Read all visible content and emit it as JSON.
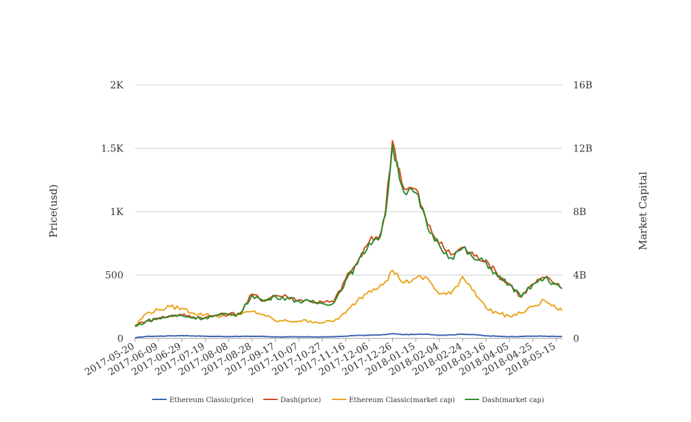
{
  "chart_data": {
    "type": "line",
    "title": "",
    "y_left_label": "Price(usd)",
    "y_right_label": "Market Capital",
    "y_left_ticks": [
      "0",
      "500",
      "1K",
      "1.5K",
      "2K"
    ],
    "y_right_ticks": [
      "0",
      "4B",
      "8B",
      "12B",
      "16B"
    ],
    "y_left_range": [
      0,
      2000
    ],
    "y_right_range": [
      0,
      16000000000
    ],
    "x_tick_labels": [
      "2017-05-20",
      "2017-06-09",
      "2017-06-29",
      "2017-07-19",
      "2017-08-08",
      "2017-08-28",
      "2017-09-17",
      "2017-10-07",
      "2017-10-27",
      "2017-11-16",
      "2017-12-06",
      "2017-12-26",
      "2018-01-15",
      "2018-02-04",
      "2018-02-24",
      "2018-03-16",
      "2018-04-05",
      "2018-04-25",
      "2018-05-15"
    ],
    "x_dates": [
      "2017-05-20",
      "2017-05-30",
      "2017-06-09",
      "2017-06-19",
      "2017-06-29",
      "2017-07-09",
      "2017-07-19",
      "2017-07-29",
      "2017-08-08",
      "2017-08-18",
      "2017-08-28",
      "2017-09-07",
      "2017-09-17",
      "2017-09-27",
      "2017-10-07",
      "2017-10-17",
      "2017-10-27",
      "2017-11-06",
      "2017-11-16",
      "2017-11-26",
      "2017-12-06",
      "2017-12-16",
      "2017-12-20",
      "2017-12-26",
      "2018-01-05",
      "2018-01-15",
      "2018-01-25",
      "2018-02-04",
      "2018-02-14",
      "2018-02-24",
      "2018-03-06",
      "2018-03-16",
      "2018-03-26",
      "2018-04-05",
      "2018-04-15",
      "2018-04-25",
      "2018-05-05",
      "2018-05-15",
      "2018-05-20"
    ],
    "series": [
      {
        "name": "Ethereum Classic(price)",
        "color": "#3a62b3",
        "axis": "left",
        "values": [
          5,
          16,
          18,
          20,
          22,
          20,
          17,
          16,
          15,
          16,
          17,
          16,
          12,
          12,
          12,
          12,
          12,
          13,
          18,
          24,
          25,
          28,
          30,
          38,
          30,
          32,
          34,
          25,
          28,
          34,
          30,
          20,
          17,
          14,
          16,
          18,
          18,
          15,
          14
        ]
      },
      {
        "name": "Dash(price)",
        "color": "#d04a1e",
        "axis": "left",
        "values": [
          100,
          140,
          160,
          180,
          185,
          170,
          165,
          185,
          190,
          200,
          350,
          300,
          340,
          330,
          305,
          295,
          285,
          290,
          470,
          600,
          760,
          830,
          1000,
          1560,
          1180,
          1180,
          900,
          750,
          660,
          720,
          650,
          620,
          500,
          430,
          330,
          430,
          480,
          430,
          395
        ]
      },
      {
        "name": "Ethereum Classic(market cap)",
        "color": "#eba31b",
        "axis": "right",
        "values": [
          800000000,
          1600000000,
          1800000000,
          2000000000,
          1900000000,
          1600000000,
          1500000000,
          1400000000,
          1500000000,
          1500000000,
          1700000000,
          1500000000,
          1100000000,
          1100000000,
          1100000000,
          1100000000,
          1000000000,
          1100000000,
          1600000000,
          2400000000,
          3000000000,
          3400000000,
          3600000000,
          4300000000,
          3500000000,
          3800000000,
          3800000000,
          2800000000,
          2800000000,
          3900000000,
          3000000000,
          1900000000,
          1600000000,
          1400000000,
          1600000000,
          2000000000,
          2400000000,
          1900000000,
          1750000000
        ]
      },
      {
        "name": "Dash(market cap)",
        "color": "#2a8a2a",
        "axis": "right",
        "values": [
          750000000,
          1100000000,
          1250000000,
          1400000000,
          1450000000,
          1300000000,
          1300000000,
          1450000000,
          1500000000,
          1550000000,
          2750000000,
          2350000000,
          2650000000,
          2550000000,
          2350000000,
          2300000000,
          2200000000,
          2250000000,
          3650000000,
          4700000000,
          6000000000,
          6500000000,
          7800000000,
          12200000000,
          9200000000,
          9200000000,
          7000000000,
          5900000000,
          5100000000,
          5700000000,
          5000000000,
          4800000000,
          3900000000,
          3400000000,
          2600000000,
          3400000000,
          3800000000,
          3400000000,
          3150000000
        ]
      }
    ],
    "grid": true,
    "legend_position": "bottom"
  }
}
